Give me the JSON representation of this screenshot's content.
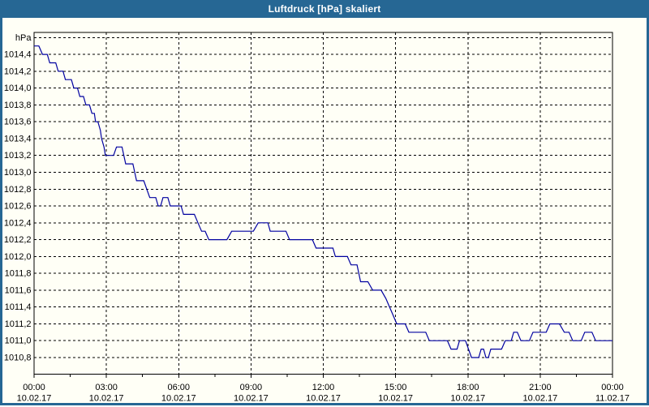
{
  "window": {
    "title": "Luftdruck [hPa] skaliert"
  },
  "colors": {
    "titlebar": "#266794",
    "window_border": "#266794",
    "background": "#FFFFF6",
    "plot_line": "#0000A0",
    "grid_and_text": "#000000"
  },
  "chart_data": {
    "type": "line",
    "title": "Luftdruck [hPa] skaliert",
    "ylabel": "hPa",
    "xlabel": "",
    "grid": "dashed black, horizontal every 0.2 hPa, vertical every 3 h",
    "legend": "none",
    "x_range_hours": [
      0,
      24
    ],
    "y_axis": {
      "display_min": 1010.6,
      "display_max": 1014.66,
      "grid_step": 0.2,
      "top_gridline": 1014.6,
      "ticks": [
        {
          "v": 1014.4,
          "label": "1014,4"
        },
        {
          "v": 1014.2,
          "label": "1014,2"
        },
        {
          "v": 1014.0,
          "label": "1014,0"
        },
        {
          "v": 1013.8,
          "label": "1013,8"
        },
        {
          "v": 1013.6,
          "label": "1013,6"
        },
        {
          "v": 1013.4,
          "label": "1013,4"
        },
        {
          "v": 1013.2,
          "label": "1013,2"
        },
        {
          "v": 1013.0,
          "label": "1013,0"
        },
        {
          "v": 1012.8,
          "label": "1012,8"
        },
        {
          "v": 1012.6,
          "label": "1012,6"
        },
        {
          "v": 1012.4,
          "label": "1012,4"
        },
        {
          "v": 1012.2,
          "label": "1012,2"
        },
        {
          "v": 1012.0,
          "label": "1012,0"
        },
        {
          "v": 1011.8,
          "label": "1011,8"
        },
        {
          "v": 1011.6,
          "label": "1011,6"
        },
        {
          "v": 1011.4,
          "label": "1011,4"
        },
        {
          "v": 1011.2,
          "label": "1011,2"
        },
        {
          "v": 1011.0,
          "label": "1011,0"
        },
        {
          "v": 1010.8,
          "label": "1010,8"
        }
      ]
    },
    "x_axis": {
      "major_ticks": [
        {
          "t": 0,
          "time": "00:00",
          "date": "10.02.17"
        },
        {
          "t": 3,
          "time": "03:00",
          "date": "10.02.17"
        },
        {
          "t": 6,
          "time": "06:00",
          "date": "10.02.17"
        },
        {
          "t": 9,
          "time": "09:00",
          "date": "10.02.17"
        },
        {
          "t": 12,
          "time": "12:00",
          "date": "10.02.17"
        },
        {
          "t": 15,
          "time": "15:00",
          "date": "10.02.17"
        },
        {
          "t": 18,
          "time": "18:00",
          "date": "10.02.17"
        },
        {
          "t": 21,
          "time": "21:00",
          "date": "10.02.17"
        },
        {
          "t": 24,
          "time": "00:00",
          "date": "11.02.17"
        }
      ],
      "minor_ticks": [
        1.5,
        4.5,
        7.5,
        10.5,
        13.5,
        16.5,
        19.5,
        22.5
      ],
      "gridlines": [
        3,
        6,
        9,
        12,
        15,
        18,
        21
      ]
    },
    "series": [
      {
        "name": "Luftdruck",
        "unit": "hPa",
        "color": "#0000A0",
        "points": [
          [
            0.0,
            1014.5
          ],
          [
            0.2,
            1014.5
          ],
          [
            0.35,
            1014.4
          ],
          [
            0.55,
            1014.4
          ],
          [
            0.65,
            1014.3
          ],
          [
            0.9,
            1014.3
          ],
          [
            1.0,
            1014.2
          ],
          [
            1.2,
            1014.2
          ],
          [
            1.3,
            1014.1
          ],
          [
            1.55,
            1014.1
          ],
          [
            1.65,
            1014.0
          ],
          [
            1.8,
            1014.0
          ],
          [
            1.9,
            1013.9
          ],
          [
            2.05,
            1013.9
          ],
          [
            2.15,
            1013.8
          ],
          [
            2.3,
            1013.8
          ],
          [
            2.4,
            1013.7
          ],
          [
            2.5,
            1013.7
          ],
          [
            2.55,
            1013.6
          ],
          [
            2.65,
            1013.6
          ],
          [
            2.75,
            1013.5
          ],
          [
            2.8,
            1013.4
          ],
          [
            2.9,
            1013.3
          ],
          [
            2.96,
            1013.2
          ],
          [
            3.3,
            1013.2
          ],
          [
            3.42,
            1013.3
          ],
          [
            3.65,
            1013.3
          ],
          [
            3.8,
            1013.1
          ],
          [
            4.1,
            1013.1
          ],
          [
            4.25,
            1012.9
          ],
          [
            4.55,
            1012.9
          ],
          [
            4.8,
            1012.7
          ],
          [
            5.05,
            1012.7
          ],
          [
            5.15,
            1012.6
          ],
          [
            5.25,
            1012.6
          ],
          [
            5.35,
            1012.7
          ],
          [
            5.55,
            1012.7
          ],
          [
            5.65,
            1012.6
          ],
          [
            6.1,
            1012.6
          ],
          [
            6.2,
            1012.5
          ],
          [
            6.65,
            1012.5
          ],
          [
            6.8,
            1012.4
          ],
          [
            6.95,
            1012.3
          ],
          [
            7.1,
            1012.3
          ],
          [
            7.25,
            1012.2
          ],
          [
            8.0,
            1012.2
          ],
          [
            8.2,
            1012.3
          ],
          [
            9.1,
            1012.3
          ],
          [
            9.3,
            1012.4
          ],
          [
            9.7,
            1012.4
          ],
          [
            9.8,
            1012.3
          ],
          [
            10.45,
            1012.3
          ],
          [
            10.6,
            1012.2
          ],
          [
            11.55,
            1012.2
          ],
          [
            11.7,
            1012.1
          ],
          [
            12.4,
            1012.1
          ],
          [
            12.5,
            1012.0
          ],
          [
            13.0,
            1012.0
          ],
          [
            13.15,
            1011.9
          ],
          [
            13.4,
            1011.9
          ],
          [
            13.55,
            1011.7
          ],
          [
            13.85,
            1011.7
          ],
          [
            14.05,
            1011.6
          ],
          [
            14.4,
            1011.6
          ],
          [
            14.6,
            1011.5
          ],
          [
            14.75,
            1011.4
          ],
          [
            14.9,
            1011.3
          ],
          [
            15.05,
            1011.2
          ],
          [
            15.4,
            1011.2
          ],
          [
            15.55,
            1011.1
          ],
          [
            16.25,
            1011.1
          ],
          [
            16.4,
            1011.0
          ],
          [
            17.15,
            1011.0
          ],
          [
            17.3,
            1010.9
          ],
          [
            17.55,
            1010.9
          ],
          [
            17.65,
            1011.0
          ],
          [
            17.9,
            1011.0
          ],
          [
            18.15,
            1010.8
          ],
          [
            18.45,
            1010.8
          ],
          [
            18.55,
            1010.9
          ],
          [
            18.65,
            1010.9
          ],
          [
            18.75,
            1010.8
          ],
          [
            18.85,
            1010.8
          ],
          [
            18.95,
            1010.9
          ],
          [
            19.4,
            1010.9
          ],
          [
            19.55,
            1011.0
          ],
          [
            19.8,
            1011.0
          ],
          [
            19.9,
            1011.1
          ],
          [
            20.05,
            1011.1
          ],
          [
            20.2,
            1011.0
          ],
          [
            20.55,
            1011.0
          ],
          [
            20.7,
            1011.1
          ],
          [
            21.25,
            1011.1
          ],
          [
            21.4,
            1011.2
          ],
          [
            21.8,
            1011.2
          ],
          [
            22.0,
            1011.1
          ],
          [
            22.2,
            1011.1
          ],
          [
            22.35,
            1011.0
          ],
          [
            22.7,
            1011.0
          ],
          [
            22.85,
            1011.1
          ],
          [
            23.15,
            1011.1
          ],
          [
            23.3,
            1011.0
          ],
          [
            24.0,
            1011.0
          ]
        ]
      }
    ]
  }
}
